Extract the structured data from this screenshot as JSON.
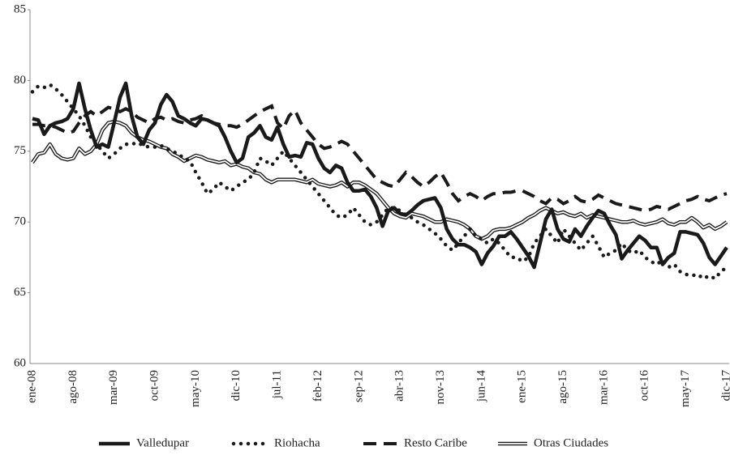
{
  "chart_data": {
    "type": "line",
    "categories": [
      "ene-08",
      null,
      null,
      null,
      null,
      null,
      null,
      "ago-08",
      null,
      null,
      null,
      null,
      null,
      null,
      "mar-09",
      null,
      null,
      null,
      null,
      null,
      null,
      "oct-09",
      null,
      null,
      null,
      null,
      null,
      null,
      "may-10",
      null,
      null,
      null,
      null,
      null,
      null,
      "dic-10",
      null,
      null,
      null,
      null,
      null,
      null,
      "jul-11",
      null,
      null,
      null,
      null,
      null,
      null,
      "feb-12",
      null,
      null,
      null,
      null,
      null,
      null,
      "sep-12",
      null,
      null,
      null,
      null,
      null,
      null,
      "abr-13",
      null,
      null,
      null,
      null,
      null,
      null,
      "nov-13",
      null,
      null,
      null,
      null,
      null,
      null,
      "jun-14",
      null,
      null,
      null,
      null,
      null,
      null,
      "ene-15",
      null,
      null,
      null,
      null,
      null,
      null,
      "ago-15",
      null,
      null,
      null,
      null,
      null,
      null,
      "mar-16",
      null,
      null,
      null,
      null,
      null,
      null,
      "oct-16",
      null,
      null,
      null,
      null,
      null,
      null,
      "may-17",
      null,
      null,
      null,
      null,
      null,
      null,
      "dic-17"
    ],
    "series": [
      {
        "name": "Valledupar",
        "color": "#1a1a1a",
        "style": "solid",
        "values": [
          77.3,
          77.2,
          76.2,
          76.8,
          77.0,
          77.1,
          77.3,
          78.0,
          79.8,
          78.0,
          76.5,
          75.3,
          75.5,
          75.3,
          77.0,
          78.8,
          79.8,
          77.5,
          76.0,
          75.5,
          76.5,
          77.0,
          78.3,
          79.0,
          78.5,
          77.5,
          77.3,
          77.0,
          76.8,
          77.3,
          77.2,
          77.0,
          76.8,
          76.0,
          75.0,
          74.2,
          74.5,
          76.0,
          76.3,
          76.8,
          76.0,
          75.8,
          76.7,
          75.5,
          74.6,
          74.7,
          74.6,
          75.6,
          75.5,
          74.5,
          73.8,
          73.5,
          74.0,
          73.8,
          72.8,
          72.2,
          72.2,
          72.3,
          71.8,
          71.0,
          69.7,
          70.8,
          71.0,
          70.6,
          70.5,
          70.8,
          71.2,
          71.5,
          71.6,
          71.7,
          71.0,
          69.5,
          68.8,
          68.4,
          68.4,
          68.2,
          67.9,
          67.0,
          67.8,
          68.3,
          69.0,
          69.0,
          69.3,
          68.8,
          68.2,
          67.6,
          66.8,
          68.5,
          70.2,
          70.9,
          69.5,
          68.8,
          68.6,
          69.5,
          69.0,
          69.7,
          70.3,
          70.8,
          70.6,
          69.8,
          69.1,
          67.4,
          68.0,
          68.5,
          69.0,
          68.7,
          68.2,
          68.2,
          67.0,
          67.5,
          67.8,
          69.3,
          69.3,
          69.2,
          69.1,
          68.5,
          67.5,
          67.0,
          67.6,
          68.2
        ]
      },
      {
        "name": "Riohacha",
        "color": "#1a1a1a",
        "style": "dotted",
        "values": [
          79.2,
          79.6,
          79.5,
          79.7,
          79.4,
          79.0,
          78.5,
          78.0,
          77.5,
          76.8,
          76.0,
          75.5,
          75.0,
          74.5,
          74.8,
          75.2,
          75.5,
          75.5,
          75.6,
          75.4,
          75.3,
          75.3,
          75.4,
          75.2,
          75.0,
          74.8,
          74.5,
          74.3,
          73.5,
          72.8,
          72.0,
          72.3,
          72.8,
          72.5,
          72.2,
          72.5,
          72.8,
          73.0,
          73.5,
          74.5,
          74.3,
          74.0,
          74.5,
          75.0,
          74.5,
          74.0,
          73.5,
          73.0,
          72.5,
          72.0,
          71.5,
          71.0,
          70.5,
          70.3,
          70.5,
          71.0,
          70.5,
          70.0,
          69.8,
          70.0,
          70.5,
          71.0,
          71.0,
          70.8,
          70.5,
          70.3,
          70.0,
          69.8,
          69.5,
          69.2,
          68.8,
          68.3,
          68.0,
          68.5,
          69.0,
          69.5,
          69.0,
          68.8,
          68.5,
          68.8,
          68.5,
          68.0,
          67.5,
          67.5,
          67.2,
          67.5,
          68.5,
          69.0,
          69.5,
          69.0,
          68.5,
          69.5,
          69.0,
          68.5,
          68.0,
          68.5,
          69.0,
          68.3,
          67.5,
          67.8,
          68.0,
          68.5,
          68.0,
          67.8,
          68.0,
          67.5,
          67.2,
          67.0,
          67.3,
          66.8,
          67.0,
          66.5,
          66.3,
          66.2,
          66.3,
          66.0,
          66.2,
          66.0,
          66.5,
          66.8
        ]
      },
      {
        "name": "Resto Caribe",
        "color": "#1a1a1a",
        "style": "dashed",
        "values": [
          76.9,
          76.9,
          76.8,
          76.8,
          76.7,
          76.5,
          76.3,
          76.4,
          77.0,
          77.5,
          77.8,
          77.5,
          77.8,
          78.1,
          78.0,
          77.8,
          78.0,
          77.8,
          77.4,
          77.2,
          77.0,
          77.3,
          77.4,
          77.2,
          77.3,
          77.1,
          77.0,
          77.2,
          77.3,
          77.5,
          77.2,
          77.0,
          76.9,
          76.8,
          76.8,
          76.7,
          76.9,
          77.2,
          77.5,
          77.8,
          78.0,
          78.2,
          77.0,
          76.6,
          77.5,
          77.9,
          77.0,
          76.5,
          76.0,
          75.5,
          75.2,
          75.3,
          75.5,
          75.7,
          75.5,
          75.0,
          74.5,
          74.0,
          73.5,
          73.0,
          72.8,
          72.6,
          72.5,
          73.0,
          73.5,
          73.2,
          72.8,
          72.5,
          72.8,
          73.2,
          73.5,
          72.8,
          72.0,
          71.5,
          71.8,
          72.0,
          71.8,
          71.5,
          71.8,
          72.0,
          72.0,
          72.1,
          72.1,
          72.2,
          72.2,
          72.0,
          71.8,
          71.5,
          71.3,
          71.7,
          71.6,
          71.3,
          71.5,
          71.8,
          71.5,
          71.4,
          71.6,
          71.9,
          71.7,
          71.5,
          71.3,
          71.2,
          71.1,
          71.0,
          70.9,
          70.8,
          70.9,
          71.1,
          71.0,
          70.9,
          71.1,
          71.3,
          71.5,
          71.6,
          71.8,
          71.6,
          71.5,
          71.7,
          71.9,
          72.0
        ]
      },
      {
        "name": "Otras Ciudades",
        "color": "#1a1a1a",
        "style": "double",
        "values": [
          74.2,
          74.8,
          74.9,
          75.5,
          74.8,
          74.5,
          74.4,
          74.5,
          75.2,
          74.8,
          75.0,
          75.5,
          76.5,
          77.0,
          77.1,
          77.0,
          76.8,
          76.3,
          76.0,
          75.8,
          75.7,
          75.5,
          75.3,
          75.2,
          74.8,
          74.6,
          74.3,
          74.5,
          74.7,
          74.6,
          74.4,
          74.3,
          74.2,
          74.3,
          74.0,
          74.1,
          73.9,
          73.8,
          73.5,
          73.4,
          73.0,
          72.8,
          73.0,
          73.0,
          73.0,
          73.0,
          72.9,
          72.8,
          73.0,
          72.7,
          72.6,
          72.5,
          72.6,
          72.8,
          72.5,
          72.8,
          72.8,
          72.6,
          72.3,
          72.0,
          71.5,
          71.0,
          70.6,
          70.4,
          70.3,
          70.6,
          70.5,
          70.4,
          70.2,
          70.0,
          70.0,
          70.2,
          70.1,
          70.0,
          69.8,
          69.5,
          69.0,
          68.8,
          69.0,
          69.4,
          69.5,
          69.5,
          69.6,
          69.8,
          70.0,
          70.3,
          70.5,
          70.8,
          71.0,
          70.8,
          70.6,
          70.7,
          70.5,
          70.4,
          70.6,
          70.3,
          70.5,
          70.4,
          70.3,
          70.2,
          70.1,
          70.0,
          70.0,
          70.1,
          69.9,
          69.8,
          69.9,
          70.0,
          70.2,
          69.9,
          69.8,
          70.0,
          70.0,
          70.3,
          70.0,
          69.6,
          69.8,
          69.5,
          69.7,
          70.0
        ]
      }
    ],
    "ylim": [
      60,
      85
    ],
    "yticks": [
      60,
      65,
      70,
      75,
      80,
      85
    ],
    "grid": false,
    "legend": "bottom"
  }
}
